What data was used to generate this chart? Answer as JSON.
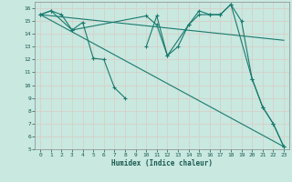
{
  "xlabel": "Humidex (Indice chaleur)",
  "background_color": "#c8e8e0",
  "grid_color": "#d8d0c8",
  "line_color": "#1a7a6e",
  "xlim": [
    -0.5,
    23.5
  ],
  "ylim": [
    5,
    16.5
  ],
  "xticks": [
    0,
    1,
    2,
    3,
    4,
    5,
    6,
    7,
    8,
    9,
    10,
    11,
    12,
    13,
    14,
    15,
    16,
    17,
    18,
    19,
    20,
    21,
    22,
    23
  ],
  "yticks": [
    5,
    6,
    7,
    8,
    9,
    10,
    11,
    12,
    13,
    14,
    15,
    16
  ],
  "line1_x": [
    0,
    1,
    2,
    3,
    4,
    5,
    6,
    7,
    8,
    10,
    11,
    12,
    13,
    14,
    15,
    16,
    17,
    18,
    19,
    20,
    21,
    22,
    23
  ],
  "line1_y": [
    15.5,
    15.8,
    15.5,
    14.3,
    14.9,
    12.1,
    12.0,
    9.8,
    9.0,
    13.0,
    15.4,
    12.3,
    13.0,
    14.7,
    15.8,
    15.5,
    15.5,
    16.3,
    15.0,
    10.5,
    8.3,
    7.0,
    5.2
  ],
  "line2_x": [
    0,
    1,
    3,
    10,
    11,
    12,
    14,
    15,
    16,
    17,
    18,
    20,
    21,
    22,
    23
  ],
  "line2_y": [
    15.5,
    15.8,
    14.3,
    15.4,
    14.7,
    12.3,
    14.7,
    15.5,
    15.5,
    15.5,
    16.3,
    10.5,
    8.3,
    7.0,
    5.2
  ],
  "line3_x": [
    0,
    23
  ],
  "line3_y": [
    15.5,
    13.5
  ],
  "line4_x": [
    0,
    23
  ],
  "line4_y": [
    15.5,
    5.2
  ]
}
